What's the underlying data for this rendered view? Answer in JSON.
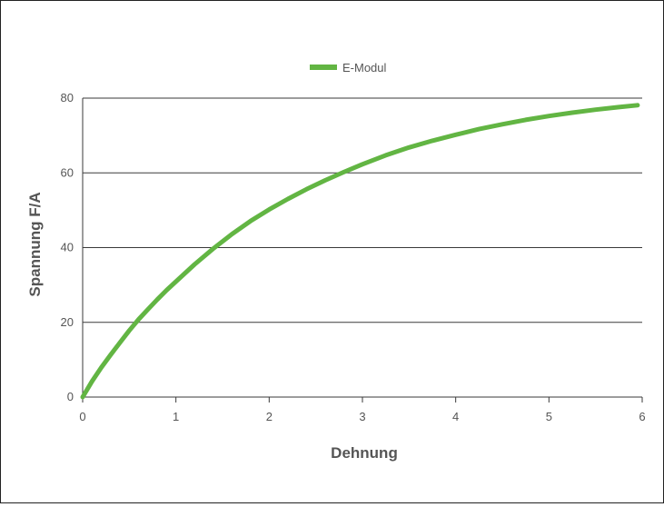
{
  "chart_data": {
    "type": "line",
    "title": "",
    "xlabel": "Dehnung",
    "ylabel": "Spannung F/A",
    "xlim": [
      0,
      6
    ],
    "ylim": [
      0,
      80
    ],
    "x_ticks": [
      "0",
      "1",
      "2",
      "3",
      "4",
      "5",
      "6"
    ],
    "y_ticks": [
      "0",
      "20",
      "40",
      "60",
      "80"
    ],
    "grid": "horizontal",
    "legend_position": "top-center",
    "series": [
      {
        "name": "E-Modul",
        "color": "#62b543",
        "x": [
          0,
          0.1,
          0.2,
          0.3,
          0.4,
          0.5,
          0.6,
          0.7,
          0.8,
          0.9,
          1.0,
          1.2,
          1.4,
          1.6,
          1.8,
          2.0,
          2.2,
          2.4,
          2.6,
          2.8,
          3.0,
          3.25,
          3.5,
          3.75,
          4.0,
          4.25,
          4.5,
          4.75,
          5.0,
          5.25,
          5.5,
          5.75,
          5.95
        ],
        "y": [
          0,
          4.2,
          7.9,
          11.3,
          14.6,
          17.8,
          20.8,
          23.5,
          26.1,
          28.6,
          30.9,
          35.5,
          39.7,
          43.6,
          47.1,
          50.2,
          53.0,
          55.6,
          58.0,
          60.2,
          62.3,
          64.7,
          66.8,
          68.6,
          70.2,
          71.7,
          73.0,
          74.2,
          75.2,
          76.1,
          76.9,
          77.6,
          78.1
        ]
      }
    ]
  }
}
